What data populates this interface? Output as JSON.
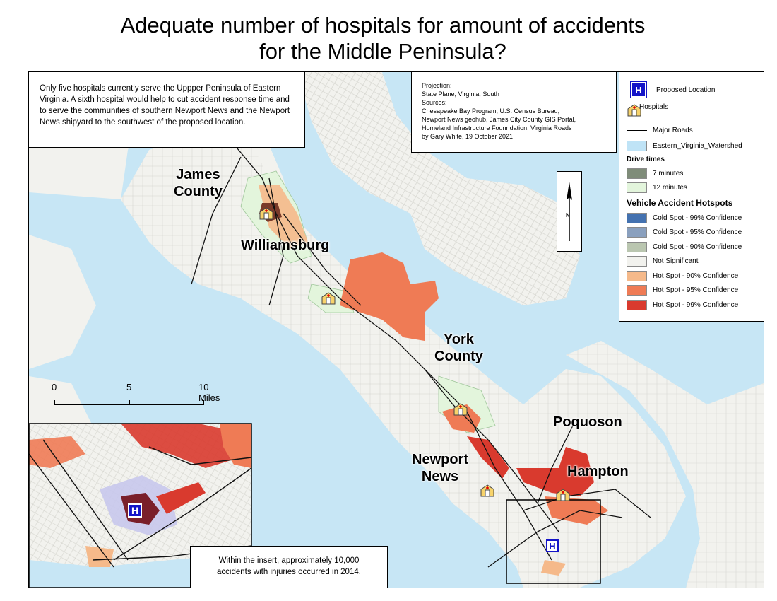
{
  "title": {
    "line1": "Adequate number of hospitals for amount of accidents",
    "line2": "for the Middle Peninsula?"
  },
  "description": "Only five hospitals currently serve the Uppper Peninsula of Eastern Virginia. A sixth hospital would help to cut accident response time and to serve the communities of southern Newport News and the Newport News shipyard to the southwest of the proposed location.",
  "credits": [
    "Projection:",
    "State Plane, Virginia, South",
    "Sources:",
    "Chesapeake Bay Program, U.S. Census Bureau,",
    "Newport News geohub, James City County GIS Portal,",
    "Homeland Infrastructure Founndation, Virginia Roads",
    "by Gary White, 19 October 2021"
  ],
  "north_arrow": {
    "label": "N"
  },
  "legend": {
    "proposed": {
      "label": "Proposed Location",
      "icon": "hospital-h-icon"
    },
    "hospitals": {
      "label": "Hospitals",
      "icon": "hospital-building-icon"
    },
    "major_roads": {
      "label": "Major Roads"
    },
    "watershed": {
      "label": "Eastern_Virginia_Watershed",
      "color": "#bfe3f6"
    },
    "drive_times_heading": "Drive times",
    "drive_times": [
      {
        "label": "7 minutes",
        "color": "#7f8c79"
      },
      {
        "label": "12 minutes",
        "color": "#e3f5dc"
      }
    ],
    "hotspots_heading": "Vehicle Accident Hotspots",
    "hotspots": [
      {
        "label": "Cold Spot - 99% Confidence",
        "color": "#4472b0"
      },
      {
        "label": "Cold Spot - 95% Confidence",
        "color": "#8aa0be"
      },
      {
        "label": "Cold Spot - 90% Confidence",
        "color": "#bac6b0"
      },
      {
        "label": "Not Significant",
        "color": "#f2f2ee"
      },
      {
        "label": "Hot Spot - 90% Confidence",
        "color": "#f5b98a"
      },
      {
        "label": "Hot Spot - 95% Confidence",
        "color": "#ef7b55"
      },
      {
        "label": "Hot Spot - 99% Confidence",
        "color": "#d93a2e"
      }
    ]
  },
  "place_labels": {
    "james": "James\nCounty",
    "williamsburg": "Williamsburg",
    "york": "York\nCounty",
    "poquoson": "Poquoson",
    "newport": "Newport\nNews",
    "hampton": "Hampton"
  },
  "scale_bar": {
    "ticks": [
      "0",
      "5",
      "10 Miles"
    ]
  },
  "insert_note": "Within the insert, approximately 10,000 accidents with injuries occurred in 2014.",
  "colors": {
    "water": "#c7e6f5",
    "land": "#f2f2ee",
    "hot99": "#d93a2e",
    "hot95": "#ef7b55",
    "hot90": "#f5b98a",
    "drive7": "#7f8c79",
    "drive12": "#e3f5dc"
  }
}
